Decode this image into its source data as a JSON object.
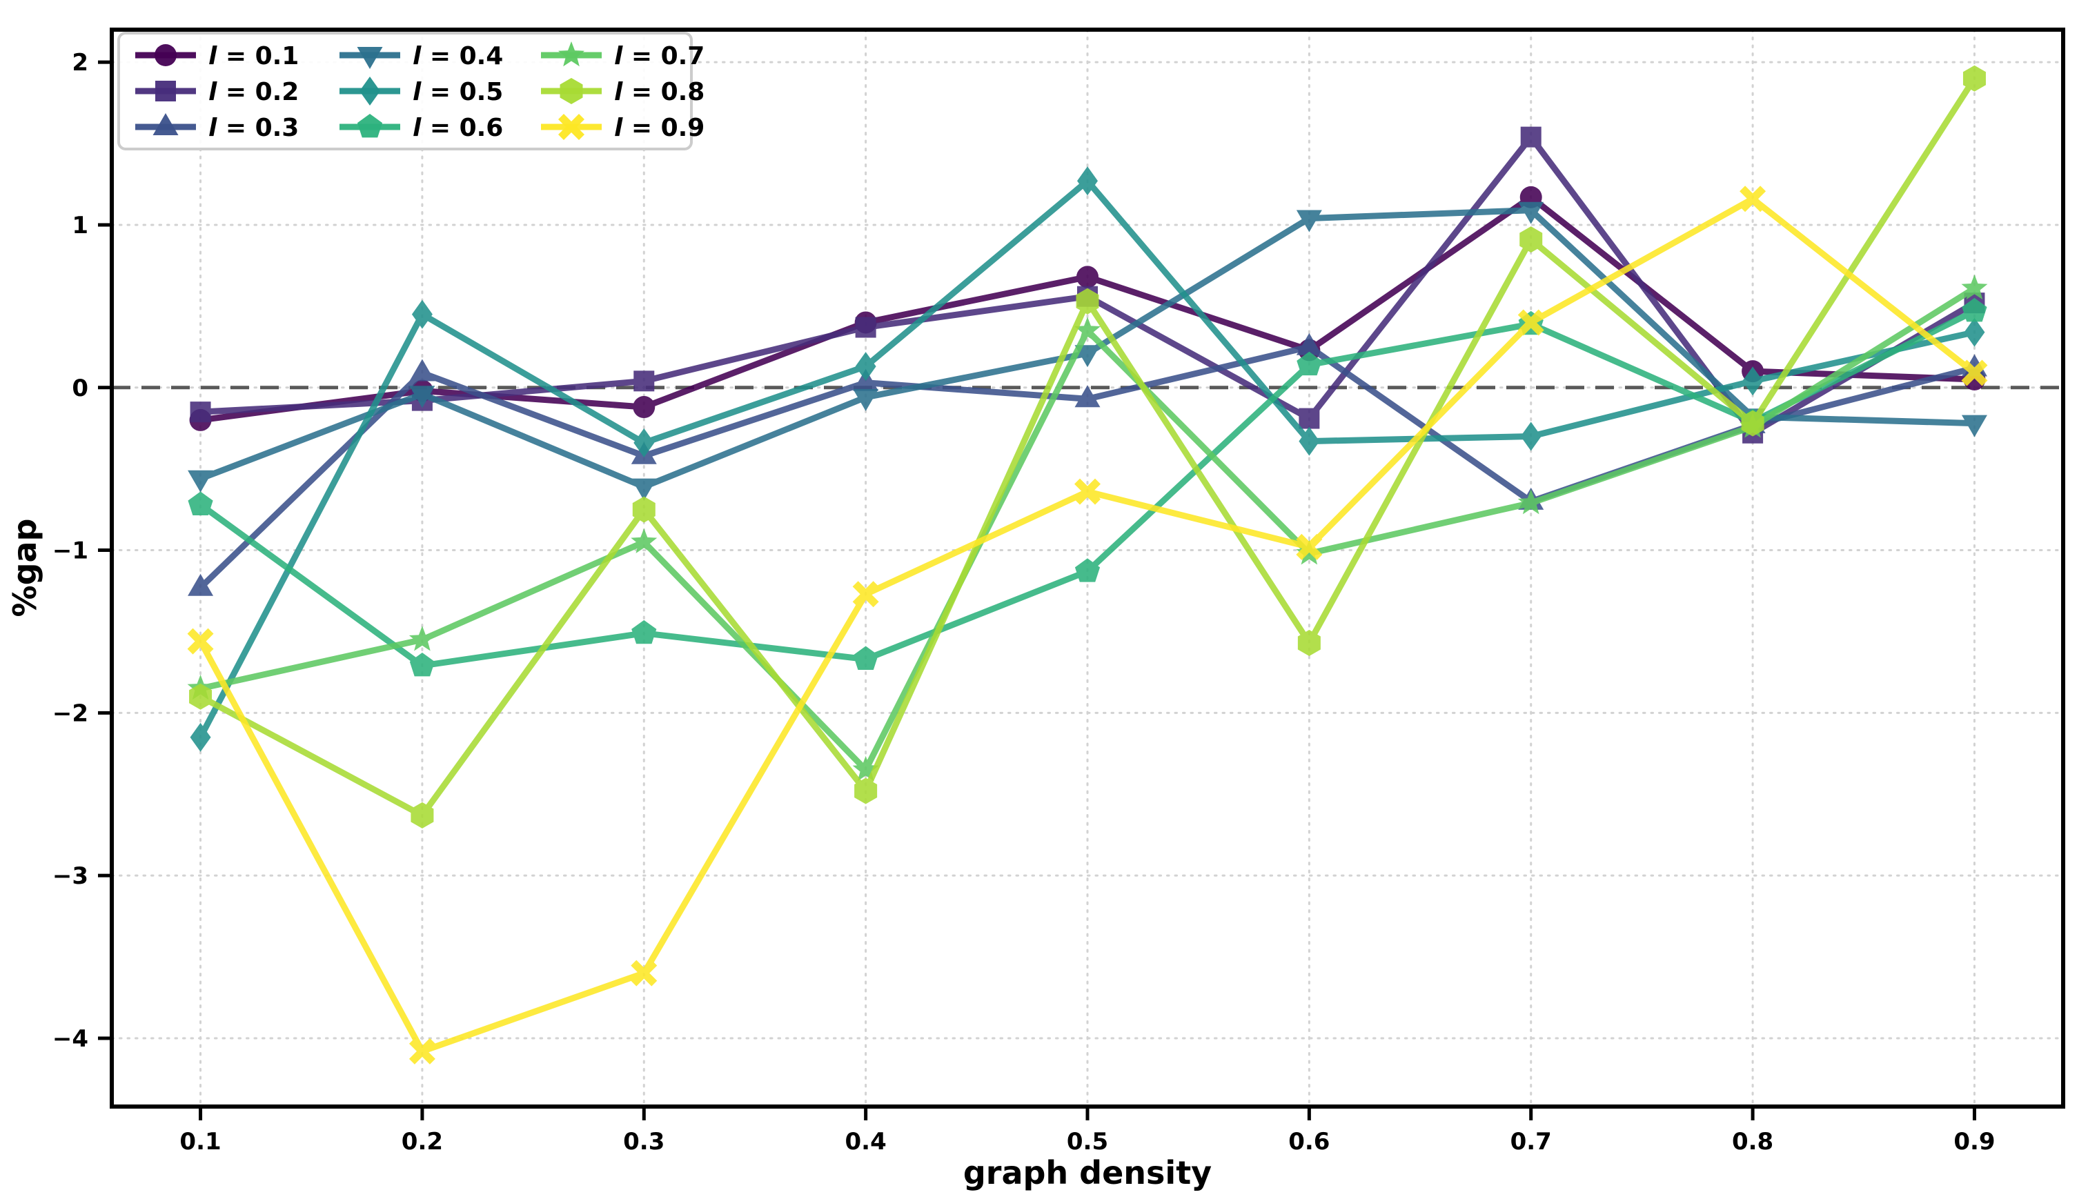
{
  "figure": {
    "background": "#ffffff",
    "spine_color": "#000000",
    "grid_color": "#cccccc",
    "tick_color": "#000000"
  },
  "chart_data": {
    "type": "line",
    "title": "",
    "xlabel": "graph density",
    "ylabel": "%gap",
    "x": [
      0.1,
      0.2,
      0.3,
      0.4,
      0.5,
      0.6,
      0.7,
      0.8,
      0.9
    ],
    "xticks": [
      0.1,
      0.2,
      0.3,
      0.4,
      0.5,
      0.6,
      0.7,
      0.8,
      0.9
    ],
    "xticklabels": [
      "0.1",
      "0.2",
      "0.3",
      "0.4",
      "0.5",
      "0.6",
      "0.7",
      "0.8",
      "0.9"
    ],
    "yticks": [
      2,
      1,
      0,
      -1,
      -2,
      -3,
      -4
    ],
    "yticklabels": [
      "2",
      "1",
      "0",
      "−1",
      "−2",
      "−3",
      "−4"
    ],
    "xlim": [
      0.06,
      0.94
    ],
    "ylim": [
      -4.42,
      2.2
    ],
    "grid": "dotted",
    "zero_line": {
      "value": 0,
      "style": "dashed",
      "color": "#595959"
    },
    "legend": {
      "position": "upper-left",
      "columns": 3,
      "order": "column-major"
    },
    "series": [
      {
        "label": "l = 0.1",
        "marker": "circle",
        "color": "#440154",
        "values": [
          -0.2,
          -0.02,
          -0.12,
          0.4,
          0.68,
          0.23,
          1.17,
          0.1,
          0.05
        ]
      },
      {
        "label": "l = 0.2",
        "marker": "square",
        "color": "#472d7b",
        "values": [
          -0.15,
          -0.08,
          0.04,
          0.37,
          0.56,
          -0.19,
          1.54,
          -0.28,
          0.52
        ]
      },
      {
        "label": "l = 0.3",
        "marker": "triangle-up",
        "color": "#3b518b",
        "values": [
          -1.23,
          0.09,
          -0.42,
          0.03,
          -0.07,
          0.25,
          -0.7,
          -0.23,
          0.12
        ]
      },
      {
        "label": "l = 0.4",
        "marker": "triangle-down",
        "color": "#2c718e",
        "values": [
          -0.56,
          -0.04,
          -0.61,
          -0.06,
          0.21,
          1.04,
          1.09,
          -0.18,
          -0.22
        ]
      },
      {
        "label": "l = 0.5",
        "marker": "diamond",
        "color": "#21918c",
        "values": [
          -2.15,
          0.45,
          -0.34,
          0.13,
          1.27,
          -0.33,
          -0.3,
          0.04,
          0.34
        ]
      },
      {
        "label": "l = 0.6",
        "marker": "pentagon",
        "color": "#2db27d",
        "values": [
          -0.72,
          -1.71,
          -1.51,
          -1.67,
          -1.13,
          0.14,
          0.39,
          -0.21,
          0.47
        ]
      },
      {
        "label": "l = 0.7",
        "marker": "star",
        "color": "#5ec962",
        "values": [
          -1.85,
          -1.55,
          -0.95,
          -2.35,
          0.35,
          -1.02,
          -0.71,
          -0.24,
          0.61
        ]
      },
      {
        "label": "l = 0.8",
        "marker": "hexagon",
        "color": "#a8db34",
        "values": [
          -1.9,
          -2.63,
          -0.75,
          -2.48,
          0.53,
          -1.57,
          0.91,
          -0.22,
          1.9
        ]
      },
      {
        "label": "l = 0.9",
        "marker": "x",
        "color": "#fde725",
        "values": [
          -1.56,
          -4.08,
          -3.6,
          -1.27,
          -0.64,
          -0.98,
          0.4,
          1.16,
          0.09
        ]
      }
    ]
  }
}
